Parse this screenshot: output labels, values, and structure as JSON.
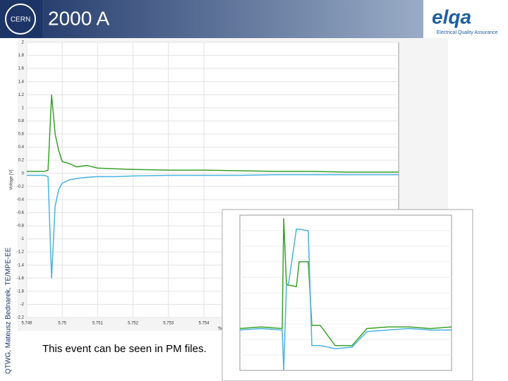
{
  "header": {
    "title": "2000 A",
    "logo_left": "CERN",
    "logo_right": "elqa",
    "logo_right_sub": "Electrical Quality Assurance"
  },
  "side_text": "QTWG, Mateusz Bednarek, TE/MPE-EE",
  "caption": "This event can be seen in PM files.",
  "chart_data": [
    {
      "type": "line",
      "ylabel": "Voltage [V]",
      "xlabel": "Time",
      "xlim": [
        5.749,
        5.7595
      ],
      "xticks": [
        5.749,
        5.75,
        5.751,
        5.752,
        5.753,
        5.754
      ],
      "ylim": [
        -2.2,
        2
      ],
      "yticks": [
        2,
        1.8,
        1.6,
        1.4,
        1.2,
        1,
        0.8,
        0.6,
        0.4,
        0.2,
        0,
        -0.2,
        -0.4,
        -0.6,
        -0.8,
        -1,
        -1.2,
        -1.4,
        -1.6,
        -1.8,
        -2,
        -2.2
      ],
      "grid": true,
      "x": [
        5.749,
        5.7495,
        5.7496,
        5.7497,
        5.7498,
        5.7499,
        5.75,
        5.7502,
        5.7504,
        5.7507,
        5.751,
        5.7515,
        5.752,
        5.753,
        5.754,
        5.755,
        5.756,
        5.757,
        5.758,
        5.759,
        5.7595
      ],
      "series": [
        {
          "color": "#3aa02c",
          "values": [
            0.03,
            0.03,
            0.05,
            1.2,
            0.6,
            0.35,
            0.18,
            0.15,
            0.1,
            0.12,
            0.08,
            0.07,
            0.06,
            0.05,
            0.05,
            0.04,
            0.03,
            0.03,
            0.02,
            0.02,
            0.02
          ]
        },
        {
          "color": "#4ab3e0",
          "values": [
            -0.03,
            -0.03,
            -0.05,
            -1.6,
            -0.5,
            -0.25,
            -0.15,
            -0.1,
            -0.08,
            -0.06,
            -0.05,
            -0.05,
            -0.04,
            -0.03,
            -0.03,
            -0.03,
            -0.02,
            -0.02,
            -0.02,
            -0.02,
            -0.02
          ]
        }
      ]
    },
    {
      "type": "line",
      "xlim": [
        0,
        100
      ],
      "ylim": [
        0,
        10
      ],
      "grid": true,
      "x": [
        0,
        10,
        20,
        20.7,
        22,
        23,
        26.7,
        28,
        32.3,
        34,
        38,
        45,
        53,
        60,
        70,
        80,
        90,
        100
      ],
      "series": [
        {
          "color": "#3aa02c",
          "values": [
            2.7,
            2.8,
            2.7,
            9.8,
            5.5,
            5.5,
            5.4,
            7,
            7,
            2.9,
            2.9,
            1.6,
            1.6,
            2.7,
            2.8,
            2.8,
            2.7,
            2.8
          ]
        },
        {
          "color": "#4ab3e0",
          "values": [
            2.6,
            2.7,
            2.6,
            0,
            5.5,
            5.6,
            9.1,
            9.1,
            9,
            1.6,
            1.6,
            1.4,
            1.5,
            2.5,
            2.6,
            2.7,
            2.6,
            2.6
          ]
        }
      ]
    }
  ]
}
